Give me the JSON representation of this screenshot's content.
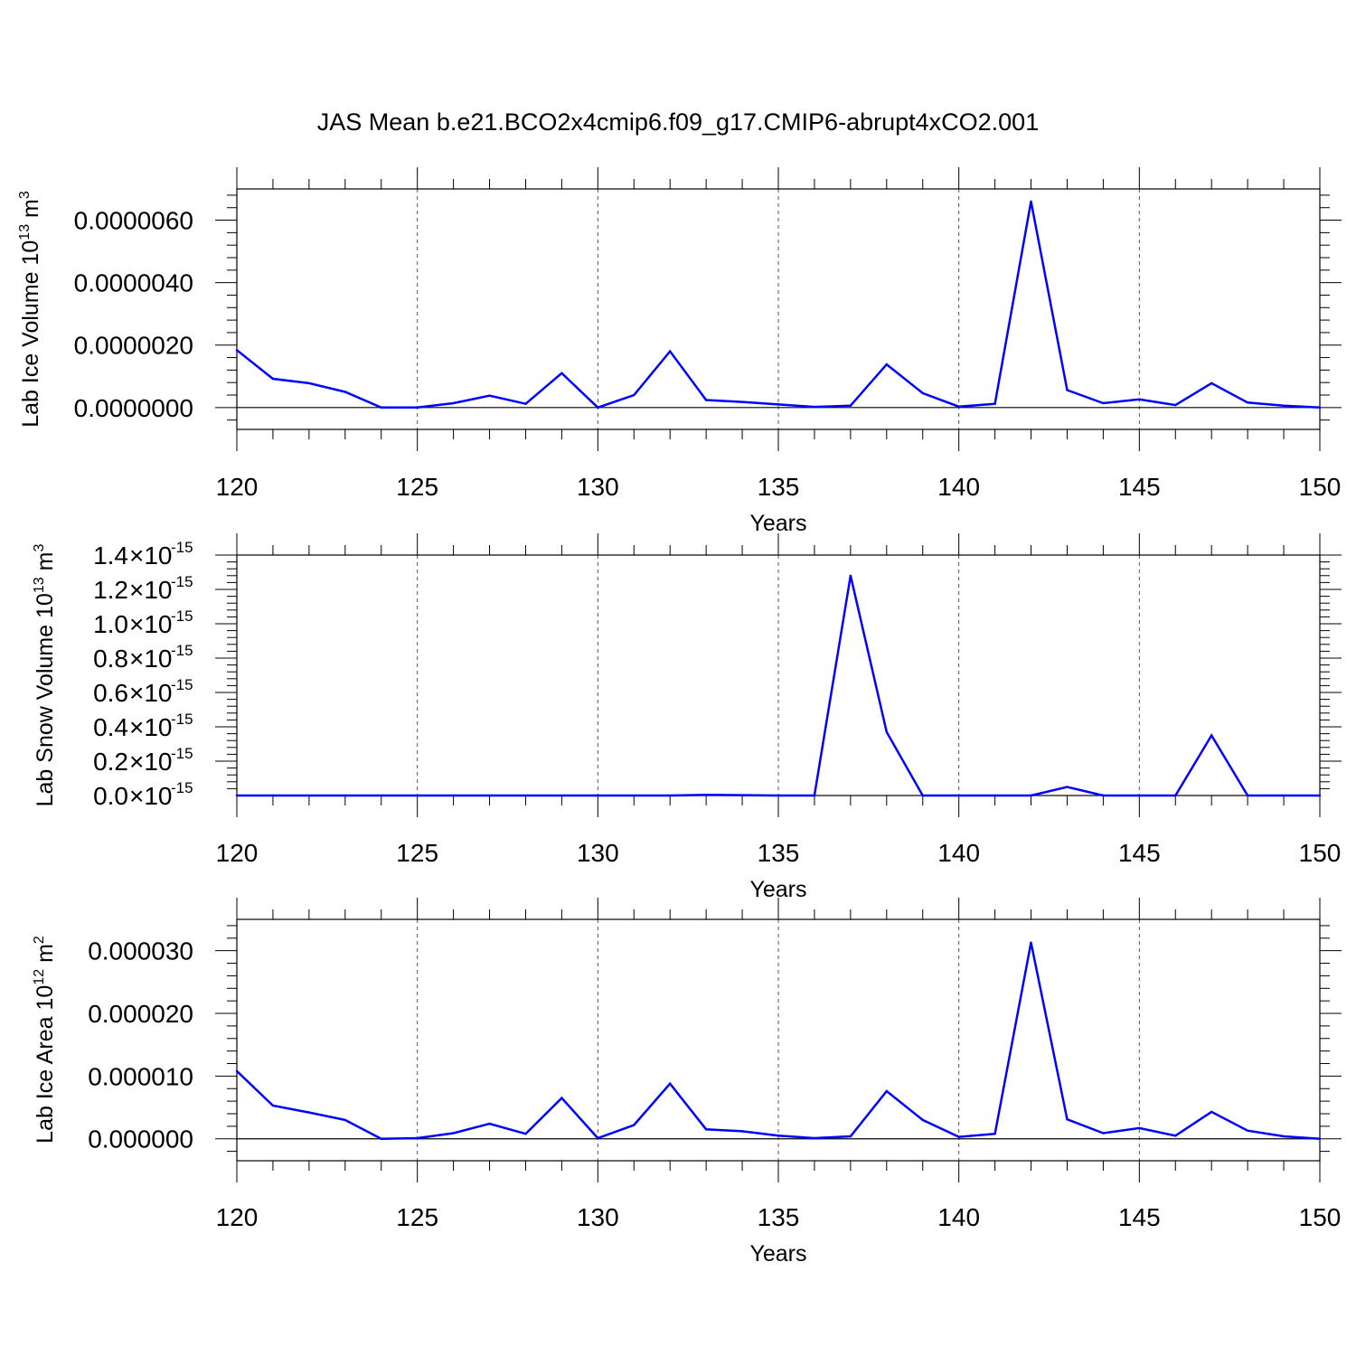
{
  "title": "JAS Mean b.e21.BCO2x4cmip6.f09_g17.CMIP6-abrupt4xCO2.001",
  "colors": {
    "line": "#0000ff",
    "axis": "#000000",
    "grid": "#555555"
  },
  "chart_data": [
    {
      "type": "line",
      "xlabel": "Years",
      "ylabel": "Lab Ice Volume 10",
      "ylabel_exp": "13",
      "ylabel_unit": " m",
      "ylabel_unit_exp": "3",
      "xlim": [
        120,
        150
      ],
      "ylim": [
        -7e-07,
        7e-06
      ],
      "xticks": [
        "120",
        "125",
        "130",
        "135",
        "140",
        "145",
        "150"
      ],
      "yticks": [
        {
          "value": 0,
          "label": "0.0000000"
        },
        {
          "value": 2e-06,
          "label": "0.0000020"
        },
        {
          "value": 4e-06,
          "label": "0.0000040"
        },
        {
          "value": 6e-06,
          "label": "0.0000060"
        }
      ],
      "grid": "vertical dashed at major x ticks",
      "x": [
        120,
        121,
        122,
        123,
        124,
        125,
        126,
        127,
        128,
        129,
        130,
        131,
        132,
        133,
        134,
        135,
        136,
        137,
        138,
        139,
        140,
        141,
        142,
        143,
        144,
        145,
        146,
        147,
        148,
        149,
        150
      ],
      "y": [
        1.84e-06,
        9.2e-07,
        7.8e-07,
        5e-07,
        0.0,
        0.0,
        1.4e-07,
        3.8e-07,
        1.2e-07,
        1.1e-06,
        0.0,
        4e-07,
        1.8e-06,
        2.4e-07,
        1.8e-07,
        1e-07,
        2e-08,
        6e-08,
        1.38e-06,
        4.6e-07,
        3e-08,
        1.2e-07,
        6.6e-06,
        5.6e-07,
        1.4e-07,
        2.6e-07,
        8e-08,
        7.8e-07,
        1.6e-07,
        6e-08,
        0.0
      ]
    },
    {
      "type": "line",
      "xlabel": "Years",
      "ylabel": "Lab Snow Volume 10",
      "ylabel_exp": "13",
      "ylabel_unit": " m",
      "ylabel_unit_exp": "3",
      "xlim": [
        120,
        150
      ],
      "ylim": [
        0,
        1.4
      ],
      "y_scale_note": "values in units of 10^-15",
      "xticks": [
        "120",
        "125",
        "130",
        "135",
        "140",
        "145",
        "150"
      ],
      "yticks": [
        {
          "value": 0,
          "mant": "0.0",
          "exp": "-15"
        },
        {
          "value": 0.2,
          "mant": "0.2",
          "exp": "-15"
        },
        {
          "value": 0.4,
          "mant": "0.4",
          "exp": "-15"
        },
        {
          "value": 0.6,
          "mant": "0.6",
          "exp": "-15"
        },
        {
          "value": 0.8,
          "mant": "0.8",
          "exp": "-15"
        },
        {
          "value": 1.0,
          "mant": "1.0",
          "exp": "-15"
        },
        {
          "value": 1.2,
          "mant": "1.2",
          "exp": "-15"
        },
        {
          "value": 1.4,
          "mant": "1.4",
          "exp": "-15"
        }
      ],
      "ytick_times": "×10",
      "grid": "vertical dashed at major x ticks",
      "x": [
        120,
        121,
        122,
        123,
        124,
        125,
        126,
        127,
        128,
        129,
        130,
        131,
        132,
        133,
        134,
        135,
        136,
        137,
        138,
        139,
        140,
        141,
        142,
        143,
        144,
        145,
        146,
        147,
        148,
        149,
        150
      ],
      "y": [
        0,
        0,
        0,
        0,
        0,
        0,
        0,
        0,
        0,
        0,
        0,
        0,
        0,
        0.004,
        0.002,
        0,
        0,
        1.28,
        0.37,
        0,
        0,
        0,
        0,
        0.05,
        0,
        0,
        0,
        0.35,
        0,
        0,
        0
      ]
    },
    {
      "type": "line",
      "xlabel": "Years",
      "ylabel": "Lab Ice Area 10",
      "ylabel_exp": "12",
      "ylabel_unit": " m",
      "ylabel_unit_exp": "2",
      "xlim": [
        120,
        150
      ],
      "ylim": [
        -3.5e-06,
        3.5e-05
      ],
      "xticks": [
        "120",
        "125",
        "130",
        "135",
        "140",
        "145",
        "150"
      ],
      "yticks": [
        {
          "value": 0,
          "label": "0.000000"
        },
        {
          "value": 1e-05,
          "label": "0.000010"
        },
        {
          "value": 2e-05,
          "label": "0.000020"
        },
        {
          "value": 3e-05,
          "label": "0.000030"
        }
      ],
      "grid": "vertical dashed at major x ticks",
      "x": [
        120,
        121,
        122,
        123,
        124,
        125,
        126,
        127,
        128,
        129,
        130,
        131,
        132,
        133,
        134,
        135,
        136,
        137,
        138,
        139,
        140,
        141,
        142,
        143,
        144,
        145,
        146,
        147,
        148,
        149,
        150
      ],
      "y": [
        1.08e-05,
        5.3e-06,
        4.2e-06,
        3e-06,
        0.0,
        1e-07,
        9e-07,
        2.4e-06,
        8e-07,
        6.5e-06,
        1e-07,
        2.2e-06,
        8.8e-06,
        1.5e-06,
        1.2e-06,
        5e-07,
        1e-07,
        4e-07,
        7.6e-06,
        3e-06,
        3e-07,
        8e-07,
        3.13e-05,
        3.1e-06,
        9e-07,
        1.7e-06,
        5e-07,
        4.3e-06,
        1.3e-06,
        4e-07,
        0.0
      ]
    }
  ]
}
